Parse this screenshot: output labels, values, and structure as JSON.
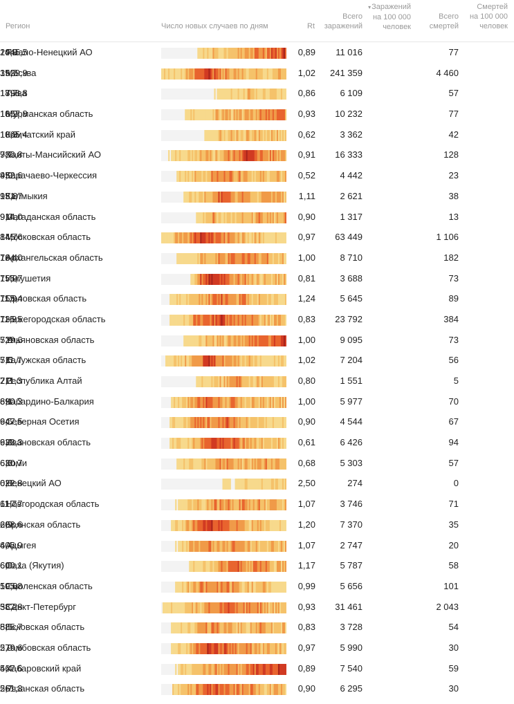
{
  "columns": {
    "region": "Регион",
    "heatmap": "Число новых случаев по дням",
    "rt": "Rt",
    "cases_total_line1": "Всего",
    "cases_total_line2": "заражений",
    "cases_per100k_line1": "Заражений",
    "cases_per100k_line2": "на 100 000",
    "cases_per100k_line3": "человек",
    "sort_indicator": "▾",
    "deaths_total_line1": "Всего",
    "deaths_total_line2": "смертей",
    "deaths_per100k_line1": "Смертей",
    "deaths_per100k_line2": "на 100 000",
    "deaths_per100k_line3": "человек"
  },
  "colors": {
    "empty": "#f3f3f3",
    "scale": [
      "#f7d98c",
      "#f5c26a",
      "#f09a48",
      "#e8642e",
      "#d13a22",
      "#a8231b"
    ]
  },
  "chart_data": {
    "type": "table",
    "heatmap_note": "Each row shows daily new-case intensity as a color strip (qualitative profile per region).",
    "rows": [
      {
        "region": "Ямало-Ненецкий АО",
        "rt": "0,89",
        "cases": "11 016",
        "cases100k": "2045,5",
        "deaths": "77",
        "deaths100k": "14,3",
        "profile": [
          0,
          0,
          0,
          0,
          0,
          0,
          1,
          1,
          2,
          1,
          2,
          2,
          2,
          3,
          3,
          4,
          3,
          4,
          4,
          5
        ]
      },
      {
        "region": "Москва",
        "rt": "1,02",
        "cases": "241 359",
        "cases100k": "1929,9",
        "deaths": "4 460",
        "deaths100k": "35,7",
        "profile": [
          1,
          1,
          1,
          2,
          2,
          3,
          4,
          5,
          4,
          3,
          3,
          2,
          2,
          2,
          2,
          2,
          1,
          1,
          2,
          2
        ]
      },
      {
        "region": "Тыва",
        "rt": "0,86",
        "cases": "6 109",
        "cases100k": "1898,8",
        "deaths": "57",
        "deaths100k": "17,7",
        "profile": [
          0,
          0,
          0,
          0,
          0,
          0,
          0,
          0,
          0,
          1,
          1,
          1,
          1,
          2,
          2,
          1,
          2,
          2,
          1,
          1
        ]
      },
      {
        "region": "Мурманская область",
        "rt": "0,93",
        "cases": "10 232",
        "cases100k": "1357,8",
        "deaths": "77",
        "deaths100k": "10,2",
        "profile": [
          0,
          0,
          0,
          0,
          1,
          1,
          1,
          1,
          2,
          2,
          3,
          2,
          2,
          2,
          3,
          3,
          3,
          3,
          4,
          3
        ]
      },
      {
        "region": "Камчатский край",
        "rt": "0,62",
        "cases": "3 362",
        "cases100k": "1065,4",
        "deaths": "42",
        "deaths100k": "13,3",
        "profile": [
          0,
          0,
          0,
          0,
          0,
          0,
          0,
          1,
          1,
          2,
          2,
          2,
          2,
          2,
          2,
          2,
          2,
          2,
          2,
          1
        ]
      },
      {
        "region": "Ханты-Мансийский АО",
        "rt": "0,91",
        "cases": "16 333",
        "cases100k": "986,8",
        "deaths": "128",
        "deaths100k": "7,7",
        "profile": [
          0,
          0,
          1,
          1,
          1,
          1,
          2,
          2,
          2,
          2,
          3,
          3,
          4,
          5,
          4,
          4,
          3,
          3,
          3,
          3
        ]
      },
      {
        "region": "Карачаево-Черкессия",
        "rt": "0,52",
        "cases": "4 442",
        "cases100k": "952,6",
        "deaths": "23",
        "deaths100k": "4,9",
        "profile": [
          0,
          0,
          0,
          1,
          1,
          2,
          2,
          2,
          3,
          3,
          4,
          3,
          3,
          3,
          2,
          2,
          2,
          2,
          2,
          2
        ]
      },
      {
        "region": "Калмыкия",
        "rt": "1,11",
        "cases": "2 621",
        "cases100k": "951,7",
        "deaths": "38",
        "deaths100k": "13,8",
        "profile": [
          0,
          0,
          0,
          0,
          1,
          1,
          2,
          2,
          3,
          4,
          4,
          3,
          3,
          3,
          2,
          2,
          2,
          3,
          3,
          2
        ]
      },
      {
        "region": "Магаданская область",
        "rt": "0,90",
        "cases": "1 317",
        "cases100k": "914,0",
        "deaths": "13",
        "deaths100k": "9,0",
        "profile": [
          0,
          0,
          0,
          0,
          0,
          0,
          1,
          1,
          3,
          1,
          2,
          1,
          2,
          2,
          2,
          3,
          3,
          2,
          2,
          3
        ]
      },
      {
        "region": "Московская область",
        "rt": "0,97",
        "cases": "63 449",
        "cases100k": "845,6",
        "deaths": "1 106",
        "deaths100k": "14,7",
        "profile": [
          1,
          1,
          2,
          2,
          3,
          4,
          5,
          5,
          4,
          4,
          3,
          3,
          2,
          2,
          2,
          2,
          1,
          1,
          1,
          1
        ]
      },
      {
        "region": "Архангельская область",
        "rt": "1,00",
        "cases": "8 710",
        "cases100k": "784,0",
        "deaths": "182",
        "deaths100k": "16,4",
        "profile": [
          0,
          0,
          0,
          1,
          1,
          1,
          2,
          2,
          2,
          3,
          3,
          3,
          3,
          4,
          3,
          3,
          3,
          2,
          2,
          2
        ]
      },
      {
        "region": "Ингушетия",
        "rt": "0,81",
        "cases": "3 688",
        "cases100k": "755,7",
        "deaths": "73",
        "deaths100k": "15,0",
        "profile": [
          0,
          0,
          0,
          0,
          0,
          1,
          4,
          5,
          5,
          4,
          4,
          3,
          3,
          3,
          2,
          2,
          2,
          2,
          2,
          2
        ]
      },
      {
        "region": "Орловская область",
        "rt": "1,24",
        "cases": "5 645",
        "cases100k": "755,4",
        "deaths": "89",
        "deaths100k": "11,9",
        "profile": [
          0,
          0,
          1,
          1,
          1,
          2,
          2,
          3,
          3,
          4,
          4,
          3,
          3,
          3,
          2,
          2,
          2,
          2,
          1,
          1
        ]
      },
      {
        "region": "Нижегородская область",
        "rt": "0,83",
        "cases": "23 792",
        "cases100k": "735,5",
        "deaths": "384",
        "deaths100k": "11,9",
        "profile": [
          0,
          0,
          1,
          1,
          2,
          3,
          3,
          4,
          4,
          5,
          4,
          4,
          3,
          3,
          3,
          2,
          2,
          2,
          2,
          2
        ]
      },
      {
        "region": "Ульяновская область",
        "rt": "1,00",
        "cases": "9 095",
        "cases100k": "729,6",
        "deaths": "73",
        "deaths100k": "5,9",
        "profile": [
          0,
          0,
          0,
          0,
          1,
          1,
          1,
          2,
          2,
          2,
          2,
          3,
          3,
          3,
          3,
          4,
          3,
          4,
          4,
          5
        ]
      },
      {
        "region": "Калужская область",
        "rt": "1,02",
        "cases": "7 204",
        "cases100k": "711,7",
        "deaths": "56",
        "deaths100k": "5,5",
        "profile": [
          0,
          1,
          1,
          2,
          2,
          3,
          4,
          5,
          4,
          3,
          3,
          2,
          2,
          2,
          2,
          1,
          1,
          1,
          1,
          1
        ]
      },
      {
        "region": "Республика Алтай",
        "rt": "0,80",
        "cases": "1 551",
        "cases100k": "711,3",
        "deaths": "5",
        "deaths100k": "2,3",
        "profile": [
          0,
          0,
          0,
          0,
          0,
          0,
          1,
          1,
          2,
          2,
          2,
          3,
          3,
          2,
          2,
          2,
          2,
          2,
          1,
          2
        ]
      },
      {
        "region": "Кабардино-Балкария",
        "rt": "1,00",
        "cases": "5 977",
        "cases100k": "690,3",
        "deaths": "70",
        "deaths100k": "8,1",
        "profile": [
          0,
          0,
          1,
          2,
          2,
          3,
          4,
          4,
          3,
          3,
          3,
          3,
          2,
          2,
          2,
          2,
          2,
          2,
          2,
          2
        ]
      },
      {
        "region": "Северная Осетия",
        "rt": "0,90",
        "cases": "4 544",
        "cases100k": "647,5",
        "deaths": "67",
        "deaths100k": "9,5",
        "profile": [
          0,
          0,
          1,
          1,
          2,
          3,
          4,
          3,
          3,
          3,
          4,
          3,
          3,
          2,
          2,
          1,
          1,
          1,
          1,
          1
        ]
      },
      {
        "region": "Ивановская область",
        "rt": "0,61",
        "cases": "6 426",
        "cases100k": "633,3",
        "deaths": "94",
        "deaths100k": "9,3",
        "profile": [
          0,
          0,
          1,
          1,
          2,
          2,
          3,
          4,
          5,
          4,
          4,
          4,
          3,
          3,
          2,
          2,
          2,
          2,
          2,
          1
        ]
      },
      {
        "region": "Коми",
        "rt": "0,68",
        "cases": "5 303",
        "cases100k": "630,7",
        "deaths": "57",
        "deaths100k": "6,8",
        "profile": [
          0,
          0,
          0,
          1,
          1,
          2,
          2,
          2,
          2,
          3,
          3,
          3,
          2,
          2,
          2,
          3,
          3,
          2,
          2,
          2
        ]
      },
      {
        "region": "Ненецкий АО",
        "rt": "2,50",
        "cases": "274",
        "cases100k": "622,8",
        "deaths": "0",
        "deaths100k": "0,0",
        "profile": [
          0,
          0,
          0,
          0,
          0,
          0,
          0,
          0,
          0,
          0,
          1,
          0,
          1,
          1,
          0,
          1,
          1,
          1,
          1,
          1
        ]
      },
      {
        "region": "Новгородская область",
        "rt": "1,07",
        "cases": "3 746",
        "cases100k": "617,7",
        "deaths": "71",
        "deaths100k": "11,7",
        "profile": [
          0,
          0,
          0,
          1,
          1,
          2,
          2,
          2,
          3,
          3,
          3,
          3,
          3,
          3,
          2,
          3,
          2,
          2,
          2,
          2
        ]
      },
      {
        "region": "Брянская область",
        "rt": "1,20",
        "cases": "7 370",
        "cases100k": "608,6",
        "deaths": "35",
        "deaths100k": "2,9",
        "profile": [
          0,
          0,
          1,
          1,
          2,
          3,
          4,
          5,
          5,
          4,
          4,
          3,
          3,
          2,
          2,
          2,
          2,
          1,
          1,
          1
        ]
      },
      {
        "region": "Адыгея",
        "rt": "1,07",
        "cases": "2 747",
        "cases100k": "605,9",
        "deaths": "20",
        "deaths100k": "4,4",
        "profile": [
          0,
          0,
          0,
          1,
          2,
          3,
          3,
          3,
          3,
          3,
          2,
          3,
          3,
          2,
          2,
          2,
          2,
          2,
          2,
          2
        ]
      },
      {
        "region": "Саха (Якутия)",
        "rt": "1,17",
        "cases": "5 787",
        "cases100k": "600,1",
        "deaths": "58",
        "deaths100k": "6,0",
        "profile": [
          0,
          0,
          0,
          0,
          0,
          1,
          1,
          2,
          2,
          3,
          3,
          4,
          4,
          3,
          3,
          3,
          3,
          2,
          2,
          2
        ]
      },
      {
        "region": "Смоленская область",
        "rt": "0,99",
        "cases": "5 656",
        "cases100k": "595,8",
        "deaths": "101",
        "deaths100k": "10,6",
        "profile": [
          0,
          0,
          0,
          1,
          2,
          2,
          3,
          3,
          3,
          3,
          3,
          3,
          2,
          2,
          2,
          2,
          2,
          1,
          1,
          1
        ]
      },
      {
        "region": "Санкт-Петербург",
        "rt": "0,93",
        "cases": "31 461",
        "cases100k": "587,8",
        "deaths": "2 043",
        "deaths100k": "38,2",
        "profile": [
          0,
          1,
          1,
          1,
          2,
          2,
          2,
          3,
          3,
          3,
          4,
          4,
          3,
          3,
          3,
          3,
          2,
          2,
          2,
          2
        ]
      },
      {
        "region": "Псковская область",
        "rt": "0,83",
        "cases": "3 728",
        "cases100k": "585,7",
        "deaths": "54",
        "deaths100k": "8,5",
        "profile": [
          0,
          0,
          1,
          1,
          1,
          2,
          3,
          3,
          3,
          3,
          3,
          2,
          2,
          2,
          2,
          3,
          3,
          2,
          2,
          2
        ]
      },
      {
        "region": "Тамбовская область",
        "rt": "0,97",
        "cases": "5 990",
        "cases100k": "579,6",
        "deaths": "30",
        "deaths100k": "2,9",
        "profile": [
          0,
          0,
          1,
          1,
          2,
          3,
          4,
          5,
          5,
          4,
          4,
          4,
          3,
          3,
          3,
          2,
          2,
          2,
          2,
          2
        ]
      },
      {
        "region": "Хабаровский край",
        "rt": "0,89",
        "cases": "7 540",
        "cases100k": "567,6",
        "deaths": "59",
        "deaths100k": "4,4",
        "profile": [
          0,
          0,
          0,
          1,
          1,
          2,
          2,
          2,
          3,
          3,
          3,
          3,
          3,
          3,
          4,
          4,
          4,
          4,
          5,
          5
        ]
      },
      {
        "region": "Рязанская область",
        "rt": "0,90",
        "cases": "6 295",
        "cases100k": "561,3",
        "deaths": "30",
        "deaths100k": "2,7",
        "profile": [
          0,
          0,
          1,
          2,
          2,
          3,
          3,
          4,
          4,
          4,
          3,
          3,
          3,
          3,
          3,
          3,
          2,
          2,
          2,
          2
        ]
      }
    ]
  }
}
